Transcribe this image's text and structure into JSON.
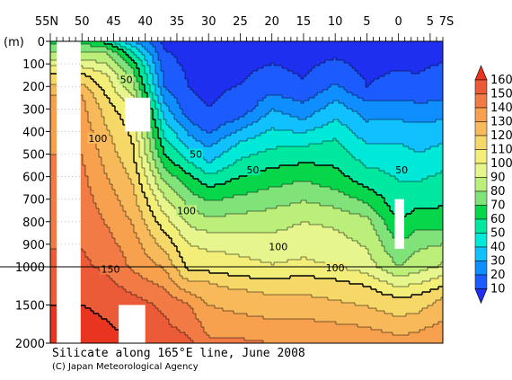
{
  "chart_data": {
    "type": "heatmap",
    "caption": "Silicate along 165°E line, June 2008",
    "credit": "(C) Japan Meteorological Agency",
    "y_unit_label": "(m)",
    "x_axis_ticks": [
      "55N",
      "50",
      "45",
      "40",
      "35",
      "30",
      "25",
      "20",
      "15",
      "10",
      "5",
      "0",
      "5",
      "7S"
    ],
    "x_axis_tick_latitudes": [
      55,
      50,
      45,
      40,
      35,
      30,
      25,
      20,
      15,
      10,
      5,
      0,
      -5,
      -7
    ],
    "x_range_lat": [
      55,
      -7
    ],
    "y_axis_upper_ticks": [
      "0",
      "100",
      "200",
      "300",
      "400",
      "500",
      "600",
      "700",
      "800",
      "900",
      "1000"
    ],
    "y_axis_lower_ticks": [
      "1500",
      "2000"
    ],
    "y_upper_depths": [
      0,
      100,
      200,
      300,
      400,
      500,
      600,
      700,
      800,
      900,
      1000
    ],
    "y_lower_depths": [
      1500,
      2000
    ],
    "depth_breakpoint_m": 1000,
    "colorbar_levels": [
      10,
      20,
      30,
      40,
      50,
      60,
      70,
      80,
      90,
      100,
      110,
      120,
      130,
      140,
      150,
      160
    ],
    "colorbar_labels": [
      "160",
      "150",
      "140",
      "130",
      "120",
      "110",
      "100",
      "90",
      "80",
      "70",
      "60",
      "50",
      "40",
      "30",
      "20",
      "10"
    ],
    "colors": {
      "lt10": "#1e2ff0",
      "10": "#1c5cff",
      "20": "#0f8fff",
      "30": "#11c1ff",
      "40": "#00e8d8",
      "50": "#00e8a0",
      "60": "#07d64b",
      "70": "#7fe37a",
      "80": "#bcee7a",
      "90": "#e6f58c",
      "100": "#f3ee78",
      "110": "#f5d868",
      "120": "#f7b95a",
      "130": "#f7a04e",
      "140": "#f27a45",
      "150": "#ec5b38",
      "160": "#e9351f"
    },
    "silicate_depth_profiles_umol_per_kg": [
      {
        "lat": 50,
        "depths_m": [
          0,
          100,
          150,
          200,
          250,
          300,
          500,
          1000,
          1500,
          2000
        ],
        "values": [
          68,
          96,
          112,
          122,
          131,
          133,
          140,
          152,
          160,
          165
        ]
      },
      {
        "lat": 46,
        "depths_m": [
          0,
          50,
          150,
          250,
          300,
          400,
          1000,
          1500,
          2000
        ],
        "values": [
          55,
          80,
          100,
          110,
          115,
          121,
          148,
          158,
          163
        ]
      },
      {
        "lat": 42,
        "depths_m": [
          0,
          50,
          100,
          200,
          300,
          400,
          500,
          600,
          900,
          1500,
          2000
        ],
        "values": [
          30,
          52,
          66,
          83,
          100,
          108,
          112,
          118,
          135,
          155,
          160
        ]
      },
      {
        "lat": 37,
        "depths_m": [
          0,
          200,
          300,
          500,
          700,
          1000,
          1500,
          2000
        ],
        "values": [
          8,
          20,
          34,
          60,
          92,
          129,
          148,
          155
        ]
      },
      {
        "lat": 33,
        "depths_m": [
          0,
          300,
          500,
          600,
          900,
          1500,
          2000
        ],
        "values": [
          5,
          12,
          43,
          62,
          100,
          140,
          152
        ]
      },
      {
        "lat": 30,
        "depths_m": [
          0,
          350,
          550,
          650,
          900,
          1200,
          1500,
          2000
        ],
        "values": [
          5,
          11,
          42,
          61,
          98,
          120,
          130,
          142
        ]
      },
      {
        "lat": 25,
        "depths_m": [
          0,
          300,
          450,
          600,
          900,
          1300,
          2000
        ],
        "values": [
          5,
          13,
          41,
          60,
          97,
          120,
          142
        ]
      },
      {
        "lat": 20,
        "depths_m": [
          0,
          200,
          300,
          500,
          700,
          900,
          1300,
          2000
        ],
        "values": [
          5,
          15,
          30,
          53,
          76,
          95,
          118,
          140
        ]
      },
      {
        "lat": 15,
        "depths_m": [
          0,
          200,
          350,
          450,
          600,
          800,
          1200,
          2000
        ],
        "values": [
          5,
          11,
          30,
          48,
          68,
          90,
          115,
          140
        ]
      },
      {
        "lat": 10,
        "depths_m": [
          0,
          150,
          300,
          450,
          600,
          800,
          1200,
          2000
        ],
        "values": [
          5,
          15,
          35,
          52,
          63,
          88,
          112,
          139
        ]
      },
      {
        "lat": 5,
        "depths_m": [
          0,
          200,
          300,
          500,
          650,
          800,
          1250,
          2000
        ],
        "values": [
          5,
          10,
          25,
          44,
          60,
          83,
          110,
          138
        ]
      },
      {
        "lat": 0,
        "depths_m": [
          0,
          200,
          350,
          500,
          750,
          1000,
          1400,
          2000
        ],
        "values": [
          5,
          13,
          30,
          45,
          55,
          80,
          110,
          134
        ]
      },
      {
        "lat": -3,
        "depths_m": [
          0,
          200,
          350,
          550,
          700,
          950,
          1400,
          2000
        ],
        "values": [
          5,
          12,
          29,
          44,
          56,
          82,
          112,
          136
        ]
      },
      {
        "lat": -7,
        "depths_m": [
          0,
          250,
          400,
          600,
          800,
          950,
          1400,
          2000
        ],
        "values": [
          5,
          18,
          36,
          52,
          64,
          88,
          120,
          140
        ]
      }
    ],
    "contour_labels": [
      {
        "text": "50",
        "lat": 43,
        "depth_m": 170
      },
      {
        "text": "50",
        "lat": 32,
        "depth_m": 500
      },
      {
        "text": "50",
        "lat": 23,
        "depth_m": 570
      },
      {
        "text": "50",
        "lat": -0.5,
        "depth_m": 570
      },
      {
        "text": "100",
        "lat": 47.5,
        "depth_m": 430
      },
      {
        "text": "100",
        "lat": 33.5,
        "depth_m": 750
      },
      {
        "text": "100",
        "lat": 19,
        "depth_m": 910
      },
      {
        "text": "100",
        "lat": 10,
        "depth_m": 1010
      },
      {
        "text": "150",
        "lat": 45.5,
        "depth_m": 1030
      }
    ],
    "missing_data_boxes": [
      {
        "lat_north": 54,
        "lat_south": 50.2,
        "depth_top_m": 0,
        "depth_bottom_m": 2000
      },
      {
        "lat_north": 43.2,
        "lat_south": 39.2,
        "depth_top_m": 250,
        "depth_bottom_m": 400
      },
      {
        "lat_north": 44.2,
        "lat_south": 40,
        "depth_top_m": 1500,
        "depth_bottom_m": 2000
      },
      {
        "lat_north": 0.6,
        "lat_south": -0.9,
        "depth_top_m": 700,
        "depth_bottom_m": 920
      }
    ]
  }
}
